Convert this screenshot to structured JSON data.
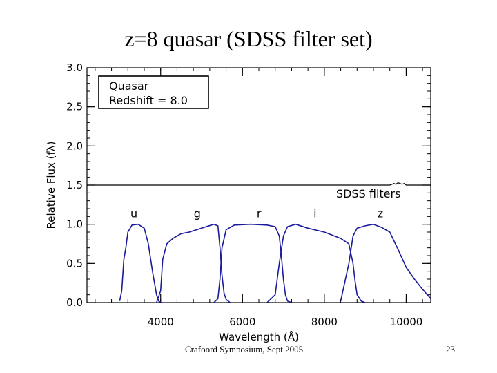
{
  "slide": {
    "title": "z=8 quasar (SDSS filter set)",
    "footer_left": "Crafoord Symposium, Sept 2005",
    "page_number": "23"
  },
  "chart_data": {
    "type": "line",
    "xlabel": "Wavelength (Å)",
    "ylabel": "Relative Flux (fλ)",
    "xlim": [
      2200,
      10600
    ],
    "ylim": [
      0.0,
      3.0
    ],
    "x_ticks": [
      4000,
      6000,
      8000,
      10000
    ],
    "y_ticks": [
      0.0,
      0.5,
      1.0,
      1.5,
      2.0,
      2.5,
      3.0
    ],
    "y_tick_labels": [
      "0.0",
      "0.5",
      "1.0",
      "1.5",
      "2.0",
      "2.5",
      "3.0"
    ],
    "legend_lines": [
      "Quasar",
      "Redshift = 8.0"
    ],
    "annotation": "SDSS filters",
    "reference_line": 1.5,
    "quasar_spectrum": {
      "x": [
        2200,
        9600,
        9650,
        9700,
        9750,
        9800,
        9850,
        9900,
        9950,
        10000,
        10600
      ],
      "y": [
        1.5,
        1.5,
        1.51,
        1.52,
        1.51,
        1.53,
        1.52,
        1.51,
        1.52,
        1.5,
        1.5
      ]
    },
    "series": [
      {
        "name": "u",
        "x": [
          3000,
          3050,
          3100,
          3150,
          3200,
          3300,
          3450,
          3600,
          3700,
          3800,
          3900,
          3950,
          4000,
          4050
        ],
        "y": [
          0.02,
          0.15,
          0.55,
          0.7,
          0.9,
          0.99,
          1.0,
          0.95,
          0.75,
          0.4,
          0.1,
          0.02,
          0.0,
          0.0
        ]
      },
      {
        "name": "g",
        "x": [
          3900,
          4000,
          4050,
          4150,
          4300,
          4500,
          4700,
          5000,
          5300,
          5400,
          5450,
          5500,
          5550,
          5600,
          5700
        ],
        "y": [
          0.0,
          0.15,
          0.55,
          0.75,
          0.82,
          0.88,
          0.9,
          0.95,
          1.0,
          0.98,
          0.7,
          0.35,
          0.12,
          0.04,
          0.0
        ]
      },
      {
        "name": "r",
        "x": [
          5300,
          5400,
          5450,
          5500,
          5600,
          5800,
          6200,
          6600,
          6800,
          6900,
          6950,
          7000,
          7050,
          7100,
          7200
        ],
        "y": [
          0.0,
          0.05,
          0.3,
          0.7,
          0.93,
          0.99,
          1.0,
          0.99,
          0.97,
          0.85,
          0.6,
          0.3,
          0.1,
          0.02,
          0.0
        ]
      },
      {
        "name": "i",
        "x": [
          6600,
          6800,
          6900,
          7000,
          7100,
          7300,
          7600,
          8000,
          8400,
          8600,
          8700,
          8750,
          8800,
          8900,
          9000
        ],
        "y": [
          0.0,
          0.1,
          0.5,
          0.85,
          0.97,
          1.0,
          0.95,
          0.9,
          0.82,
          0.75,
          0.5,
          0.28,
          0.1,
          0.02,
          0.0
        ]
      },
      {
        "name": "z",
        "x": [
          8400,
          8600,
          8700,
          8800,
          9000,
          9200,
          9400,
          9600,
          9800,
          10000,
          10200,
          10400,
          10600
        ],
        "y": [
          0.02,
          0.5,
          0.85,
          0.95,
          0.98,
          1.0,
          0.96,
          0.9,
          0.68,
          0.45,
          0.3,
          0.17,
          0.05
        ]
      }
    ]
  }
}
